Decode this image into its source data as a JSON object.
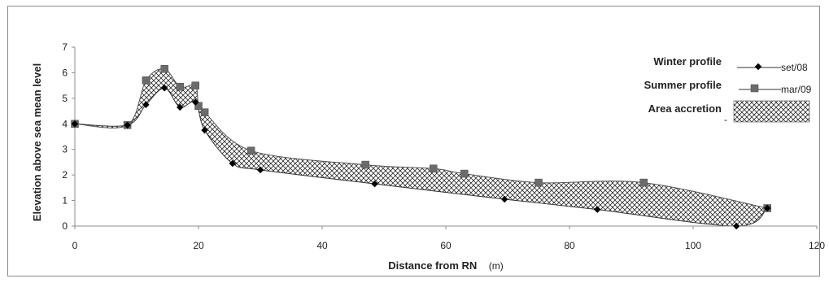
{
  "chart_data": {
    "type": "line",
    "xlabel": "Distance from RN",
    "xunit": "(m)",
    "ylabel": "Elevation above sea mean level",
    "xlim": [
      0,
      120
    ],
    "ylim": [
      0,
      7
    ],
    "xticks": [
      "0",
      "20",
      "40",
      "60",
      "80",
      "100",
      "120"
    ],
    "yticks": [
      "0",
      "1",
      "2",
      "3",
      "4",
      "5",
      "6",
      "7"
    ],
    "grid": false,
    "legend_position": "top-right",
    "legend": {
      "winter_label": "Winter profile",
      "summer_label": "Summer profile",
      "area_label": "Area accretion",
      "dash_mark": "-"
    },
    "series": [
      {
        "name": "set/08",
        "marker": "diamond",
        "points": [
          [
            0,
            4.0
          ],
          [
            8.5,
            3.95
          ],
          [
            11.5,
            4.75
          ],
          [
            14.5,
            5.4
          ],
          [
            17,
            4.65
          ],
          [
            19.5,
            4.85
          ],
          [
            21,
            3.75
          ],
          [
            25.5,
            2.45
          ],
          [
            30,
            2.2
          ],
          [
            48.5,
            1.65
          ],
          [
            69.5,
            1.05
          ],
          [
            84.5,
            0.65
          ],
          [
            107,
            0.0
          ],
          [
            112,
            0.7
          ]
        ]
      },
      {
        "name": "mar/09",
        "marker": "square",
        "points": [
          [
            0,
            4.0
          ],
          [
            8.5,
            3.95
          ],
          [
            11.5,
            5.7
          ],
          [
            14.5,
            6.15
          ],
          [
            17,
            5.45
          ],
          [
            19.5,
            5.5
          ],
          [
            20,
            4.7
          ],
          [
            21,
            4.45
          ],
          [
            28.5,
            2.95
          ],
          [
            47,
            2.4
          ],
          [
            58,
            2.25
          ],
          [
            63,
            2.05
          ],
          [
            75,
            1.7
          ],
          [
            92,
            1.7
          ],
          [
            112,
            0.7
          ]
        ]
      }
    ]
  }
}
